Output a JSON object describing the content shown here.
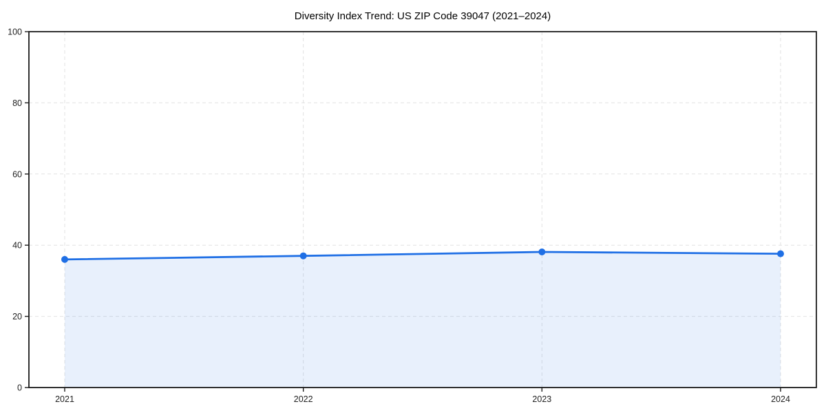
{
  "chart_data": {
    "type": "area",
    "title": "Diversity Index Trend: US ZIP Code 39047 (2021–2024)",
    "categories": [
      "2021",
      "2022",
      "2023",
      "2024"
    ],
    "series": [
      {
        "name": "Diversity Index",
        "values": [
          36,
          37,
          38.1,
          37.6
        ]
      }
    ],
    "xlabel": "",
    "ylabel": "",
    "ylim": [
      0,
      100
    ],
    "yticks": [
      0,
      20,
      40,
      60,
      80,
      100
    ],
    "grid": "dashed both axes",
    "legend": "none",
    "colors": {
      "line": "#1f6fe5",
      "marker": "#1f6fe5",
      "fill": "rgba(31,111,229,0.10)",
      "grid": "#e2e2e2",
      "spine": "#1a1a1a",
      "tick_label": "#222222",
      "title": "#000000",
      "background": "#ffffff"
    }
  }
}
